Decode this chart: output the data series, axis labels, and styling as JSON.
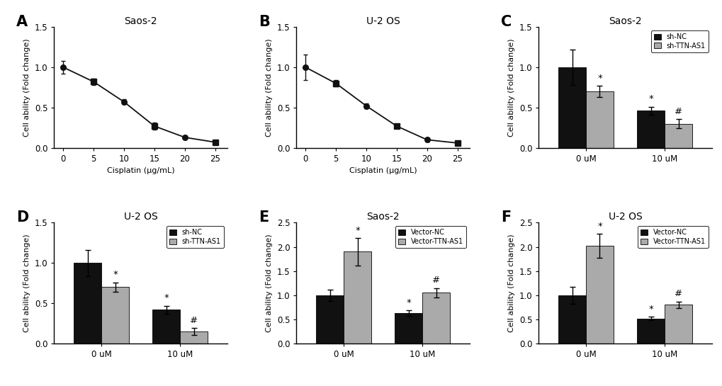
{
  "panel_A": {
    "title": "Saos-2",
    "xlabel": "Cisplatin (μg/mL)",
    "ylabel": "Cell ability (Fold change)",
    "x": [
      0,
      5,
      10,
      15,
      20,
      25
    ],
    "y": [
      1.0,
      0.82,
      0.57,
      0.27,
      0.13,
      0.07
    ],
    "yerr": [
      0.08,
      0.04,
      0.03,
      0.04,
      0.02,
      0.015
    ],
    "ylim": [
      0,
      1.5
    ],
    "yticks": [
      0.0,
      0.5,
      1.0,
      1.5
    ]
  },
  "panel_B": {
    "title": "U-2 OS",
    "xlabel": "Cisplatin (μg/mL)",
    "ylabel": "Cell ability (Fold change)",
    "x": [
      0,
      5,
      10,
      15,
      20,
      25
    ],
    "y": [
      1.0,
      0.8,
      0.52,
      0.27,
      0.1,
      0.06
    ],
    "yerr": [
      0.16,
      0.04,
      0.03,
      0.03,
      0.02,
      0.01
    ],
    "ylim": [
      0,
      1.5
    ],
    "yticks": [
      0.0,
      0.5,
      1.0,
      1.5
    ]
  },
  "panel_C": {
    "title": "Saos-2",
    "ylabel": "Cell ability (Fold change)",
    "categories": [
      "0 uM",
      "10 uM"
    ],
    "bar1_values": [
      1.0,
      0.46
    ],
    "bar2_values": [
      0.7,
      0.3
    ],
    "bar1_err": [
      0.22,
      0.05
    ],
    "bar2_err": [
      0.07,
      0.06
    ],
    "bar1_color": "#111111",
    "bar2_color": "#aaaaaa",
    "bar1_label": "sh-NC",
    "bar2_label": "sh-TTN-AS1",
    "ylim": [
      0,
      1.5
    ],
    "yticks": [
      0.0,
      0.5,
      1.0,
      1.5
    ],
    "annotations": [
      {
        "text": "*",
        "bar": 1,
        "cat": 0
      },
      {
        "text": "*",
        "bar": 0,
        "cat": 1
      },
      {
        "text": "#",
        "bar": 1,
        "cat": 1
      }
    ]
  },
  "panel_D": {
    "title": "U-2 OS",
    "ylabel": "Cell ability (Fold change)",
    "categories": [
      "0 uM",
      "10 uM"
    ],
    "bar1_values": [
      1.0,
      0.42
    ],
    "bar2_values": [
      0.7,
      0.15
    ],
    "bar1_err": [
      0.16,
      0.05
    ],
    "bar2_err": [
      0.06,
      0.04
    ],
    "bar1_color": "#111111",
    "bar2_color": "#aaaaaa",
    "bar1_label": "sh-NC",
    "bar2_label": "sh-TTN-AS1",
    "ylim": [
      0,
      1.5
    ],
    "yticks": [
      0.0,
      0.5,
      1.0,
      1.5
    ],
    "annotations": [
      {
        "text": "*",
        "bar": 1,
        "cat": 0
      },
      {
        "text": "*",
        "bar": 0,
        "cat": 1
      },
      {
        "text": "#",
        "bar": 1,
        "cat": 1
      }
    ]
  },
  "panel_E": {
    "title": "Saos-2",
    "ylabel": "Cell ability (Fold change)",
    "categories": [
      "0 uM",
      "10 uM"
    ],
    "bar1_values": [
      1.0,
      0.63
    ],
    "bar2_values": [
      1.9,
      1.05
    ],
    "bar1_err": [
      0.12,
      0.06
    ],
    "bar2_err": [
      0.28,
      0.1
    ],
    "bar1_color": "#111111",
    "bar2_color": "#aaaaaa",
    "bar1_label": "Vector-NC",
    "bar2_label": "Vector-TTN-AS1",
    "ylim": [
      0,
      2.5
    ],
    "yticks": [
      0.0,
      0.5,
      1.0,
      1.5,
      2.0,
      2.5
    ],
    "annotations": [
      {
        "text": "*",
        "bar": 1,
        "cat": 0
      },
      {
        "text": "*",
        "bar": 0,
        "cat": 1
      },
      {
        "text": "#",
        "bar": 1,
        "cat": 1
      }
    ]
  },
  "panel_F": {
    "title": "U-2 OS",
    "ylabel": "Cell ability (Fold change)",
    "categories": [
      "0 uM",
      "10 uM"
    ],
    "bar1_values": [
      1.0,
      0.52
    ],
    "bar2_values": [
      2.02,
      0.8
    ],
    "bar1_err": [
      0.18,
      0.04
    ],
    "bar2_err": [
      0.25,
      0.07
    ],
    "bar1_color": "#111111",
    "bar2_color": "#aaaaaa",
    "bar1_label": "Vector-NC",
    "bar2_label": "Vector-TTN-AS1",
    "ylim": [
      0,
      2.5
    ],
    "yticks": [
      0.0,
      0.5,
      1.0,
      1.5,
      2.0,
      2.5
    ],
    "annotations": [
      {
        "text": "*",
        "bar": 1,
        "cat": 0
      },
      {
        "text": "*",
        "bar": 0,
        "cat": 1
      },
      {
        "text": "#",
        "bar": 1,
        "cat": 1
      }
    ]
  },
  "label_fontsize": 8,
  "title_fontsize": 10,
  "tick_fontsize": 8.5,
  "panel_label_fontsize": 15,
  "line_color": "#111111",
  "marker_size": 5.5
}
